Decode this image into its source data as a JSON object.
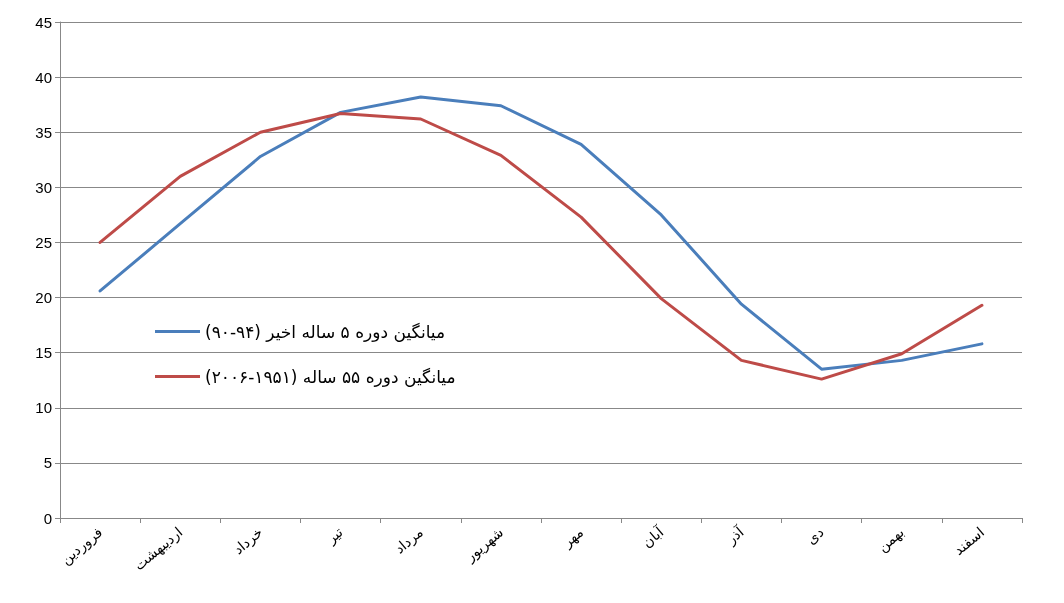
{
  "chart_data": {
    "type": "line",
    "categories": [
      "فروردین",
      "اردیبهشت",
      "خرداد",
      "تیر",
      "مرداد",
      "شهریور",
      "مهر",
      "آبان",
      "آذر",
      "دی",
      "بهمن",
      "اسفند"
    ],
    "series": [
      {
        "name": "(۹۰-۹۴) میانگین دوره ۵ ساله اخیر",
        "color": "#4a7ebb",
        "values": [
          20.6,
          26.7,
          32.8,
          36.8,
          38.2,
          37.4,
          33.9,
          27.5,
          19.4,
          13.5,
          14.3,
          15.8
        ]
      },
      {
        "name": "(۲۰۰۶-۱۹۵۱) میانگین دوره ۵۵ ساله",
        "color": "#be4b48",
        "values": [
          25.0,
          31.0,
          35.0,
          36.7,
          36.2,
          32.9,
          27.3,
          19.9,
          14.3,
          12.6,
          14.9,
          19.3
        ]
      }
    ],
    "ylim": [
      0,
      45
    ],
    "yticks": [
      0,
      5,
      10,
      15,
      20,
      25,
      30,
      35,
      40,
      45
    ],
    "grid": "y",
    "legend": "left",
    "marker": "none",
    "line_style": "solid"
  }
}
